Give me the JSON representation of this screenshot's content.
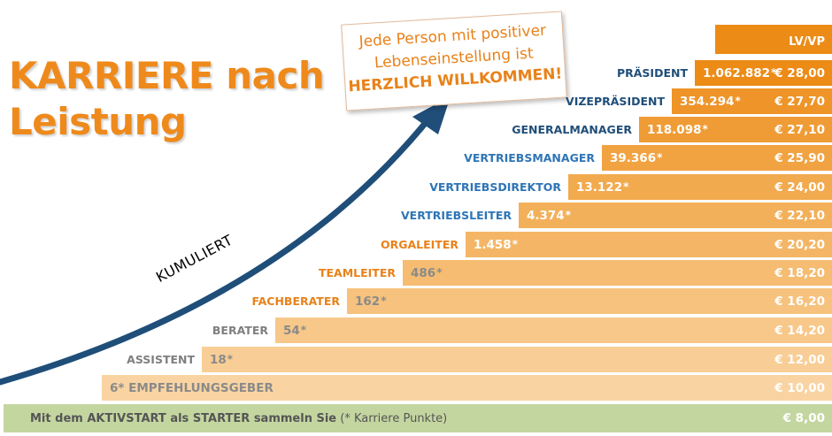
{
  "title": {
    "line1": "KARRIERE nach",
    "line2": "Leistung"
  },
  "callout": {
    "line1": "Jede Person mit positiver",
    "line2": "Lebenseinstellung ist",
    "line3": "HERZLICH WILLKOMMEN!"
  },
  "arrow_label": "KUMULIERT",
  "header": {
    "lvvp": "LV/VP"
  },
  "levels": [
    {
      "label": "PRÄSIDENT",
      "points": "1.062.882",
      "star": "*",
      "price": "€ 28,00",
      "color": "#ec8b16",
      "label_color": "#1f4e79"
    },
    {
      "label": "VIZEPRÄSIDENT",
      "points": "354.294",
      "star": "*",
      "price": "€ 27,70",
      "color": "#ee9429",
      "label_color": "#1f4e79"
    },
    {
      "label": "GENERALMANAGER",
      "points": "118.098",
      "star": "*",
      "price": "€ 27,10",
      "color": "#f09c36",
      "label_color": "#1f4e79"
    },
    {
      "label": "VERTRIEBSMANAGER",
      "points": "39.366",
      "star": "*",
      "price": "€ 25,90",
      "color": "#f1a342",
      "label_color": "#2e75b6"
    },
    {
      "label": "VERTRIEBSDIREKTOR",
      "points": "13.122",
      "star": "*",
      "price": "€ 24,00",
      "color": "#f2aa4e",
      "label_color": "#2e75b6"
    },
    {
      "label": "VERTRIEBSLEITER",
      "points": "4.374",
      "star": "*",
      "price": "€ 22,10",
      "color": "#f3b05a",
      "label_color": "#2e75b6"
    },
    {
      "label": "ORGALEITER",
      "points": "1.458",
      "star": "*",
      "price": "€ 20,20",
      "color": "#f4b666",
      "label_color": "#e8821a"
    },
    {
      "label": "TEAMLEITER",
      "points": "486",
      "star": "*",
      "price": "€ 18,20",
      "color": "#f5bc72",
      "label_color": "#e8821a"
    },
    {
      "label": "FACHBERATER",
      "points": "162",
      "star": "*",
      "price": "€ 16,20",
      "color": "#f6c27e",
      "label_color": "#e8821a"
    },
    {
      "label": "BERATER",
      "points": "54",
      "star": "*",
      "price": "€ 14,20",
      "color": "#f7c88a",
      "label_color": "#7f7f7f"
    },
    {
      "label": "ASSISTENT",
      "points": "18",
      "star": "*",
      "price": "€ 12,00",
      "color": "#f8ce96",
      "label_color": "#7f7f7f"
    },
    {
      "label": "",
      "points": "6* EMPFEHLUNGSGEBER",
      "star": "",
      "price": "€ 10,00",
      "color": "#f9d4a2",
      "label_color": "#7f7f7f"
    }
  ],
  "starter": {
    "text_bold": "Mit dem AKTIVSTART als STARTER sammeln Sie",
    "text_normal": " (* Karriere Punkte)",
    "price": "€  8,00",
    "color": "#c4d6a0"
  },
  "colors": {
    "orange": "#ec8b16",
    "navy": "#1f4e79",
    "blue": "#2e75b6",
    "arrow": "#1f4e79"
  }
}
